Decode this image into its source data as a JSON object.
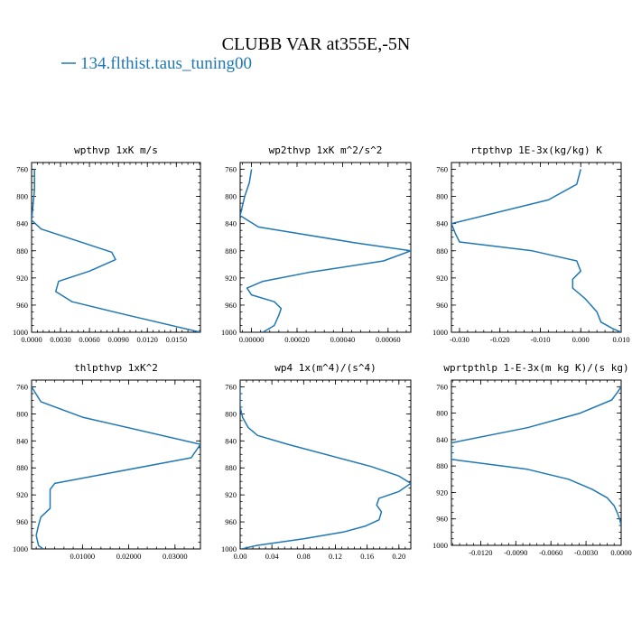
{
  "title": "CLUBB VAR at355E,-5N",
  "series_color": "#1f77b4",
  "legend_label": "134.flthist.taus_tuning00",
  "chart_data": [
    {
      "type": "line",
      "title": "wpthvp  1xK m/s",
      "xlim": [
        0,
        0.0175
      ],
      "xticks": [
        0,
        0.003,
        0.006,
        0.009,
        0.012,
        0.015
      ],
      "xtick_labels": [
        "0.0000",
        "0.0030",
        "0.0060",
        "0.0090",
        "0.0120",
        "0.0150"
      ],
      "ylim": [
        1000,
        750
      ],
      "yticks": [
        760,
        800,
        840,
        880,
        920,
        960,
        1000
      ],
      "series": [
        {
          "x": [
            0.0003,
            0.0003,
            0.0001,
            0.0,
            0.001,
            0.0083,
            0.0087,
            0.006,
            0.0028,
            0.0025,
            0.0042,
            0.01,
            0.0175
          ],
          "y": [
            760,
            790,
            820,
            835,
            848,
            882,
            893,
            910,
            925,
            940,
            955,
            975,
            1000
          ]
        }
      ]
    },
    {
      "type": "line",
      "title": "wp2thvp  1xK m^2/s^2",
      "xlim": [
        -5e-05,
        0.0007
      ],
      "xticks": [
        0,
        0.0002,
        0.0004,
        0.0006
      ],
      "xtick_labels": [
        "0.00000",
        "0.00020",
        "0.00040",
        "0.00060"
      ],
      "ylim": [
        1000,
        750
      ],
      "yticks": [
        760,
        800,
        840,
        880,
        920,
        960,
        1000
      ],
      "series": [
        {
          "x": [
            0.0,
            -1e-05,
            -3e-05,
            -5e-05,
            3e-05,
            0.00045,
            0.0007,
            0.00058,
            0.00025,
            5e-05,
            -2e-05,
            0.0,
            0.0001,
            0.00013,
            0.00012,
            0.0001,
            5e-05
          ],
          "y": [
            760,
            780,
            800,
            828,
            845,
            868,
            880,
            895,
            912,
            925,
            935,
            945,
            955,
            965,
            975,
            990,
            1000
          ]
        }
      ]
    },
    {
      "type": "line",
      "title": "rtpthvp  1E-3x(kg/kg) K",
      "xlim": [
        -0.032,
        0.01
      ],
      "xticks": [
        -0.03,
        -0.02,
        -0.01,
        0,
        0.01
      ],
      "xtick_labels": [
        "-0.030",
        "-0.020",
        "-0.010",
        "0.000",
        "0.010"
      ],
      "ylim": [
        1000,
        750
      ],
      "yticks": [
        760,
        800,
        840,
        880,
        920,
        960,
        1000
      ],
      "series": [
        {
          "x": [
            0.0,
            -0.001,
            -0.008,
            -0.032,
            -0.031,
            -0.03,
            -0.012,
            -0.001,
            0.0,
            -0.002,
            -0.002,
            0.001,
            0.004,
            0.005,
            0.008,
            0.01
          ],
          "y": [
            760,
            782,
            805,
            840,
            855,
            867,
            880,
            895,
            910,
            922,
            935,
            950,
            970,
            985,
            995,
            1000
          ]
        }
      ]
    },
    {
      "type": "line",
      "title": "thlpthvp  1xK^2",
      "xlim": [
        -0.001,
        0.0355
      ],
      "xticks": [
        0.01,
        0.02,
        0.03
      ],
      "xtick_labels": [
        "0.01000",
        "0.02000",
        "0.03000"
      ],
      "ylim": [
        1000,
        750
      ],
      "yticks": [
        760,
        800,
        840,
        880,
        920,
        960,
        1000
      ],
      "series": [
        {
          "x": [
            -0.001,
            0.001,
            0.01,
            0.0355,
            0.0335,
            0.004,
            0.003,
            0.003,
            0.003,
            0.001,
            0.0005,
            0.0,
            0.0005,
            0.0015
          ],
          "y": [
            760,
            782,
            805,
            845,
            865,
            903,
            912,
            925,
            940,
            953,
            965,
            980,
            995,
            1000
          ]
        }
      ]
    },
    {
      "type": "line",
      "title": "wp4  1x(m^4)/(s^4)",
      "xlim": [
        0,
        0.215
      ],
      "xticks": [
        0,
        0.04,
        0.08,
        0.12,
        0.16,
        0.2
      ],
      "xtick_labels": [
        "0.00",
        "0.04",
        "0.08",
        "0.12",
        "0.16",
        "0.20"
      ],
      "ylim": [
        1000,
        750
      ],
      "yticks": [
        760,
        800,
        840,
        880,
        920,
        960,
        1000
      ],
      "series": [
        {
          "x": [
            0.0,
            0.0,
            0.003,
            0.01,
            0.022,
            0.06,
            0.165,
            0.2,
            0.215,
            0.2,
            0.175,
            0.172,
            0.178,
            0.175,
            0.158,
            0.13,
            0.08,
            0.02,
            0.002
          ],
          "y": [
            760,
            790,
            805,
            820,
            832,
            845,
            878,
            892,
            903,
            915,
            925,
            935,
            945,
            957,
            966,
            975,
            985,
            995,
            1000
          ]
        }
      ]
    },
    {
      "type": "line",
      "title": "wprtpthlp  1-E-3x(m kg K)/(s kg)",
      "xlim": [
        -0.0145,
        0.0
      ],
      "xticks": [
        -0.012,
        -0.009,
        -0.006,
        -0.003,
        0.0
      ],
      "xtick_labels": [
        "-0.0120",
        "-0.0090",
        "-0.0060",
        "-0.0030",
        "0.0000"
      ],
      "ylim": [
        1000,
        750
      ],
      "yticks": [
        760,
        800,
        840,
        880,
        920,
        960,
        1000
      ],
      "series": [
        {
          "x": [
            0.0,
            -0.0003,
            -0.0008,
            -0.0035,
            -0.008,
            -0.0145,
            -0.0145,
            -0.0145,
            -0.008,
            -0.0045,
            -0.0025,
            -0.0012,
            -0.0006,
            -0.0003,
            -0.0001,
            0.0
          ],
          "y": [
            760,
            768,
            780,
            800,
            822,
            845,
            862,
            870,
            885,
            900,
            915,
            928,
            940,
            952,
            962,
            970
          ]
        }
      ]
    }
  ]
}
